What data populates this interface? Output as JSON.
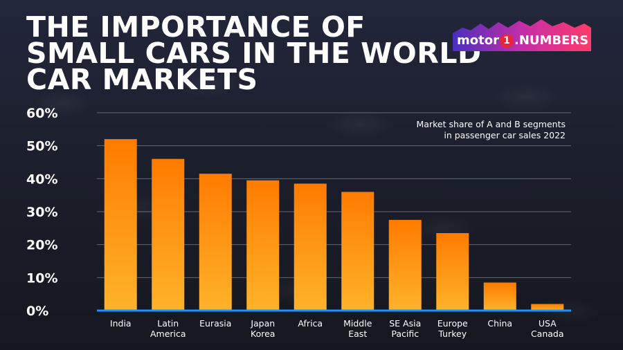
{
  "title_lines": [
    "THE IMPORTANCE OF",
    "SMALL CARS IN THE WORLD",
    "CAR MARKETS"
  ],
  "logo": {
    "word": "motor",
    "number": "1",
    "suffix": ".NUMBERS"
  },
  "subtitle_lines": [
    "Market share of A and B segments",
    "in passenger car sales 2022"
  ],
  "colors": {
    "bar_top": "#ff7b00",
    "bar_bottom": "#ffb32a",
    "baseline": "#1e90ff",
    "grid": "#7a8096",
    "text": "#ffffff"
  },
  "chart_data": {
    "type": "bar",
    "categories": [
      [
        "India"
      ],
      [
        "Latin",
        "America"
      ],
      [
        "Eurasia"
      ],
      [
        "Japan",
        "Korea"
      ],
      [
        "Africa"
      ],
      [
        "Middle",
        "East"
      ],
      [
        "SE Asia",
        "Pacific"
      ],
      [
        "Europe",
        "Turkey"
      ],
      [
        "China"
      ],
      [
        "USA",
        "Canada"
      ]
    ],
    "values": [
      52,
      46,
      41.5,
      39.5,
      38.5,
      36,
      27.5,
      23.5,
      8.5,
      2
    ],
    "title": "",
    "xlabel": "",
    "ylabel": "",
    "ylim": [
      0,
      60
    ],
    "yticks": [
      "0%",
      "10%",
      "20%",
      "30%",
      "40%",
      "50%",
      "60%"
    ],
    "grid": true
  }
}
